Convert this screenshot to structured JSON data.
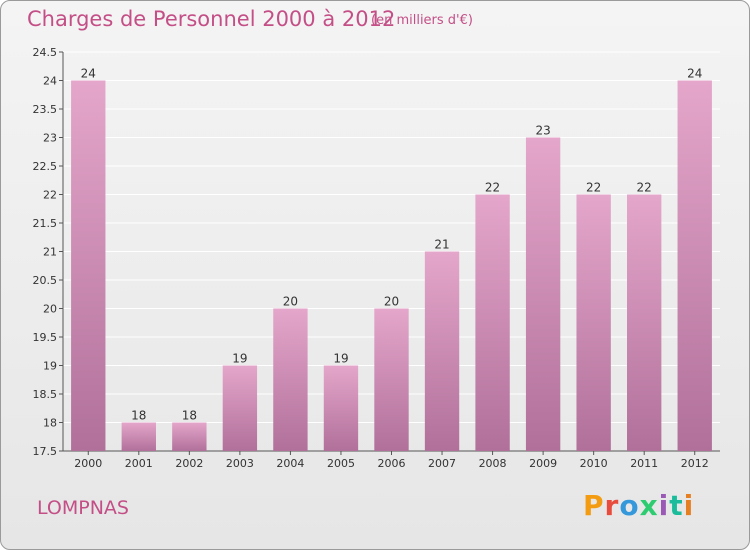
{
  "header": {
    "title": "Charges de Personnel 2000 à 2012",
    "subtitle": "(en milliers d'€)"
  },
  "footer": {
    "commune": "LOMPNAS",
    "logo_text": "Proxiti",
    "logo_colors": [
      "#f39c12",
      "#e74c3c",
      "#3498db",
      "#2ecc71",
      "#9b59b6",
      "#1abc9c",
      "#e67e22"
    ]
  },
  "colors": {
    "accent": "#c44f87",
    "bar_top": "#e5a6cb",
    "bar_bottom": "#b0709a",
    "grid": "#ffffff"
  },
  "chart_data": {
    "type": "bar",
    "categories": [
      "2000",
      "2001",
      "2002",
      "2003",
      "2004",
      "2005",
      "2006",
      "2007",
      "2008",
      "2009",
      "2010",
      "2011",
      "2012"
    ],
    "values": [
      24,
      18,
      18,
      19,
      20,
      19,
      20,
      21,
      22,
      23,
      22,
      22,
      24
    ],
    "data_labels": [
      "24",
      "18",
      "18",
      "19",
      "20",
      "19",
      "20",
      "21",
      "22",
      "23",
      "22",
      "22",
      "24"
    ],
    "title": "Charges de Personnel 2000 à 2012",
    "xlabel": "",
    "ylabel": "",
    "ylim": [
      17.5,
      24.5
    ],
    "yticks": [
      17.5,
      18,
      18.5,
      19,
      19.5,
      20,
      20.5,
      21,
      21.5,
      22,
      22.5,
      23,
      23.5,
      24,
      24.5
    ],
    "ytick_labels": [
      "17.5",
      "18",
      "18.5",
      "19",
      "19.5",
      "20",
      "20.5",
      "21",
      "21.5",
      "22",
      "22.5",
      "23",
      "23.5",
      "24",
      "24.5"
    ],
    "grid": true,
    "legend": "none"
  }
}
